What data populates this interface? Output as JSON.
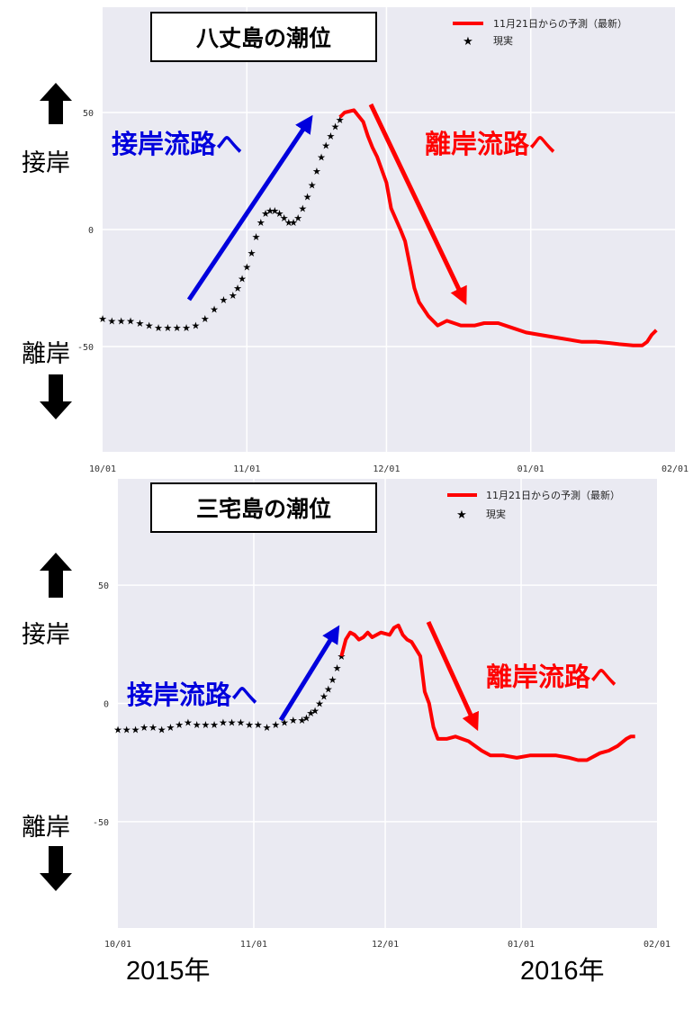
{
  "colors": {
    "plot_bg": "#eaeaf2",
    "grid": "#ffffff",
    "forecast": "#ff0000",
    "observed": "#000000",
    "toward_arrow": "#0000dd",
    "away_arrow": "#ff0000"
  },
  "labels": {
    "toward_shore": "接岸",
    "away_shore": "離岸",
    "year_2015": "2015年",
    "year_2016": "2016年"
  },
  "chart_data": [
    {
      "type": "line",
      "title": "八丈島の潮位",
      "xlabel": "",
      "ylabel": "",
      "x_ticks": [
        "10/01",
        "11/01",
        "12/01",
        "01/01",
        "02/01"
      ],
      "y_ticks": [
        "50",
        "0",
        "-50"
      ],
      "ylim": [
        -95,
        95
      ],
      "xlim_days": [
        0,
        123
      ],
      "legend_position": "top-right",
      "annotations": [
        {
          "text": "接岸流路へ",
          "color": "blue"
        },
        {
          "text": "離岸流路へ",
          "color": "red"
        }
      ],
      "series": [
        {
          "name": "11月21日からの予測（最新）",
          "kind": "line",
          "color": "#ff0000",
          "x": [
            51,
            52,
            54,
            56,
            57,
            58,
            59,
            61,
            62,
            64,
            65,
            66,
            67,
            68,
            70,
            72,
            74,
            77,
            80,
            82,
            85,
            88,
            91,
            94,
            97,
            100,
            103,
            106,
            109,
            111,
            114,
            116,
            117,
            118,
            119
          ],
          "y": [
            48,
            50,
            51,
            46,
            40,
            35,
            31,
            20,
            9,
            0,
            -5,
            -15,
            -25,
            -31,
            -37,
            -41,
            -39,
            -41,
            -41,
            -40,
            -40,
            -42,
            -44,
            -45,
            -46,
            -47,
            -48,
            -48,
            -48.5,
            -49,
            -49.5,
            -49.5,
            -48,
            -45,
            -43
          ]
        },
        {
          "name": "現実",
          "kind": "scatter",
          "marker": "star",
          "color": "#000000",
          "x": [
            0,
            2,
            4,
            6,
            8,
            10,
            12,
            14,
            16,
            18,
            20,
            22,
            24,
            26,
            28,
            29,
            30,
            31,
            32,
            33,
            34,
            35,
            36,
            37,
            38,
            39,
            40,
            41,
            42,
            43,
            44,
            45,
            46,
            47,
            48,
            49,
            50,
            51
          ],
          "y": [
            -38,
            -39,
            -39,
            -39,
            -40,
            -41,
            -42,
            -42,
            -42,
            -42,
            -41,
            -38,
            -34,
            -30,
            -28,
            -25,
            -21,
            -16,
            -10,
            -3,
            3,
            7,
            8,
            8,
            7,
            5,
            3,
            3,
            5,
            9,
            14,
            19,
            25,
            31,
            36,
            40,
            44,
            47
          ]
        }
      ]
    },
    {
      "type": "line",
      "title": "三宅島の潮位",
      "xlabel": "",
      "ylabel": "",
      "x_ticks": [
        "10/01",
        "11/01",
        "12/01",
        "01/01",
        "02/01"
      ],
      "y_ticks": [
        "50",
        "0",
        "-50"
      ],
      "ylim": [
        -95,
        95
      ],
      "xlim_days": [
        0,
        123
      ],
      "legend_position": "top-right",
      "annotations": [
        {
          "text": "接岸流路へ",
          "color": "blue"
        },
        {
          "text": "離岸流路へ",
          "color": "red"
        }
      ],
      "series": [
        {
          "name": "11月21日からの予測（最新）",
          "kind": "line",
          "color": "#ff0000",
          "x": [
            51,
            52,
            53,
            54,
            55,
            56,
            57,
            58,
            60,
            62,
            63,
            64,
            65,
            66,
            67,
            69,
            70,
            71,
            72,
            73,
            75,
            77,
            80,
            83,
            85,
            88,
            91,
            94,
            97,
            100,
            103,
            105,
            107,
            108,
            110,
            112,
            114,
            116,
            117,
            118
          ],
          "y": [
            20,
            27,
            30,
            29,
            27,
            28,
            30,
            28,
            30,
            29,
            32,
            33,
            29,
            27,
            26,
            20,
            5,
            0,
            -10,
            -15,
            -15,
            -14,
            -16,
            -20,
            -22,
            -22,
            -23,
            -22,
            -22,
            -22,
            -23,
            -24,
            -24,
            -23,
            -21,
            -20,
            -18,
            -15,
            -14,
            -14
          ]
        },
        {
          "name": "現実",
          "kind": "scatter",
          "marker": "star",
          "color": "#000000",
          "x": [
            0,
            2,
            4,
            6,
            8,
            10,
            12,
            14,
            16,
            18,
            20,
            22,
            24,
            26,
            28,
            30,
            32,
            34,
            36,
            38,
            40,
            42,
            43,
            44,
            45,
            46,
            47,
            48,
            49,
            50,
            51
          ],
          "y": [
            -11,
            -11,
            -11,
            -10,
            -10,
            -11,
            -10,
            -9,
            -8,
            -9,
            -9,
            -9,
            -8,
            -8,
            -8,
            -9,
            -9,
            -10,
            -9,
            -8,
            -7,
            -7,
            -6,
            -4,
            -3,
            0,
            3,
            6,
            10,
            15,
            20
          ]
        }
      ]
    }
  ]
}
